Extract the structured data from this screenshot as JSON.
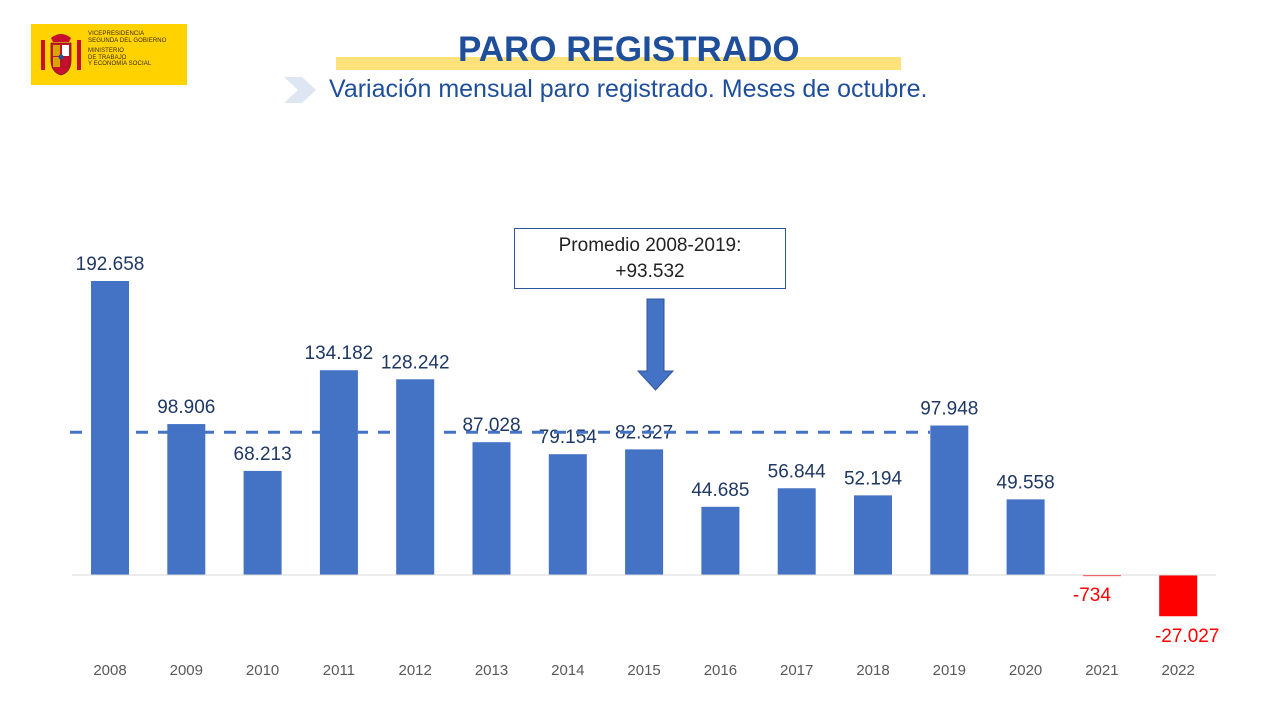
{
  "logo": {
    "lines_top": [
      "VICEPRESIDENCIA",
      "SEGUNDA DEL GOBIERNO"
    ],
    "lines_bottom": [
      "MINISTERIO",
      "DE TRABAJO",
      "Y ECONOMÍA SOCIAL"
    ]
  },
  "header": {
    "title": "PARO REGISTRADO",
    "subtitle": "Variación mensual paro registrado. Meses de octubre."
  },
  "annotation": {
    "label": "Promedio 2008-2019:",
    "value": "+93.532"
  },
  "colors": {
    "bar_positive": "#4472c4",
    "bar_negative": "#ff0000",
    "label_positive": "#1f3864",
    "label_negative": "#ff0000",
    "average_line": "#4472c4",
    "title": "#1f4e9a",
    "highlight": "#ffe27a"
  },
  "chart_data": {
    "type": "bar",
    "title": "Variación mensual paro registrado. Meses de octubre.",
    "categories": [
      "2008",
      "2009",
      "2010",
      "2011",
      "2012",
      "2013",
      "2014",
      "2015",
      "2016",
      "2017",
      "2018",
      "2019",
      "2020",
      "2021",
      "2022"
    ],
    "values": [
      192658,
      98906,
      68213,
      134182,
      128242,
      87028,
      79154,
      82327,
      44685,
      56844,
      52194,
      97948,
      49558,
      -734,
      -27027
    ],
    "value_labels": [
      "192.658",
      "98.906",
      "68.213",
      "134.182",
      "128.242",
      "87.028",
      "79.154",
      "82.327",
      "44.685",
      "56.844",
      "52.194",
      "97.948",
      "49.558",
      "-734",
      "-27.027"
    ],
    "average": {
      "value": 93532,
      "range": [
        "2008",
        "2019"
      ]
    },
    "xlabel": "",
    "ylabel": "",
    "ylim": [
      -40000,
      200000
    ],
    "grid": false,
    "legend": "none"
  }
}
